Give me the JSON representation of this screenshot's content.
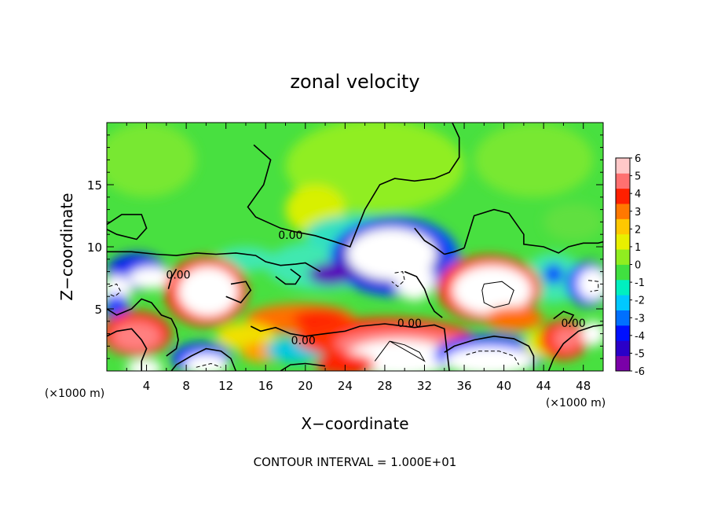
{
  "chart_data": {
    "type": "heatmap",
    "title": "zonal velocity",
    "xlabel": "X−coordinate",
    "ylabel": "Z−coordinate",
    "x_unit_left": "(×1000 m)",
    "x_unit_right": "(×1000 m)",
    "xlim": [
      0,
      50
    ],
    "ylim": [
      0,
      20
    ],
    "xticks": [
      4,
      8,
      12,
      16,
      20,
      24,
      28,
      32,
      36,
      40,
      44,
      48
    ],
    "yticks": [
      5,
      10,
      15
    ],
    "contour_labels": [
      {
        "text": "0.00",
        "x": 18.5,
        "y": 10.9
      },
      {
        "text": "0.00",
        "x": 7.2,
        "y": 7.7
      },
      {
        "text": "0.00",
        "x": 30.5,
        "y": 3.8
      },
      {
        "text": "0.00",
        "x": 19.8,
        "y": 2.4
      },
      {
        "text": "0.00",
        "x": 47.0,
        "y": 3.8
      }
    ],
    "colorbar": {
      "min": -6,
      "max": 6,
      "ticks": [
        6,
        5,
        4,
        3,
        2,
        1,
        0,
        -1,
        -2,
        -3,
        -4,
        -5,
        -6
      ],
      "colors": [
        "#7a00a8",
        "#2a00c8",
        "#0010ff",
        "#0070ff",
        "#00c8ff",
        "#00f0c0",
        "#40e040",
        "#90ee20",
        "#e8f000",
        "#ffc800",
        "#ff7800",
        "#ff2000",
        "#ff7070",
        "#ffc8c8"
      ]
    },
    "annotation": "CONTOUR INTERVAL = 1.000E+01"
  }
}
